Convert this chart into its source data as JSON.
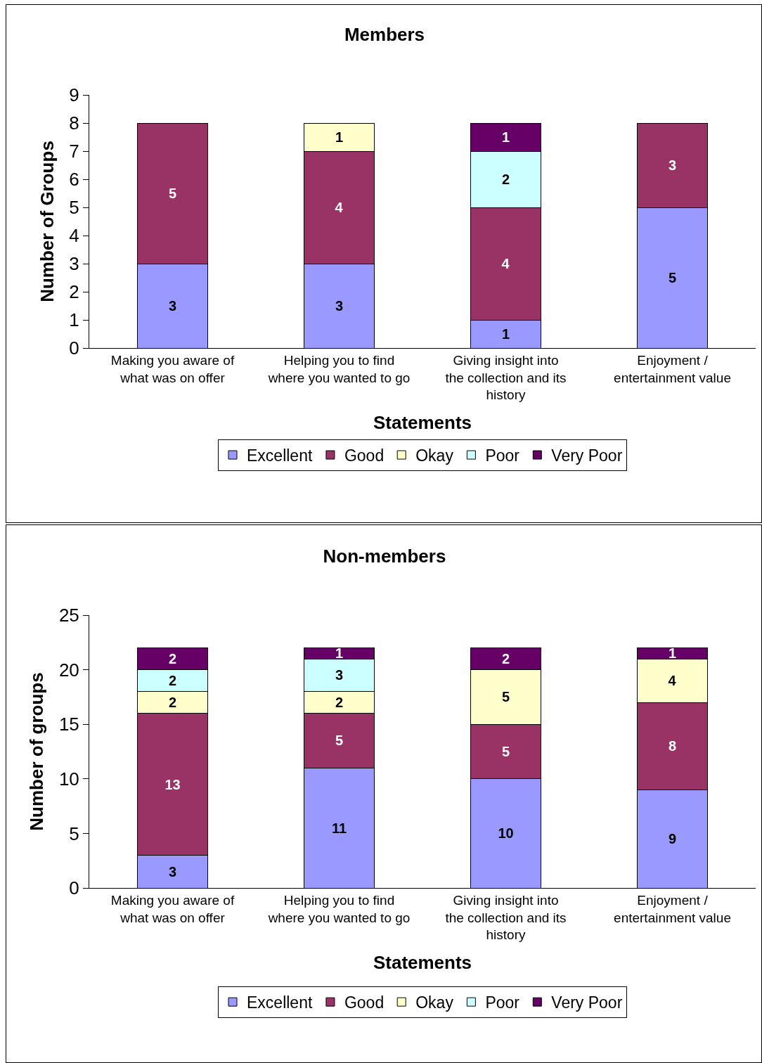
{
  "chart_data": [
    {
      "type": "bar",
      "title": "Members",
      "xlabel": "Statements",
      "ylabel": "Number of Groups",
      "stacked": true,
      "data_labels": true,
      "legend": "bottom",
      "grid": false,
      "ylim": [
        0,
        9
      ],
      "yticks": [
        0,
        1,
        2,
        3,
        4,
        5,
        6,
        7,
        8,
        9
      ],
      "categories": [
        "Making you aware of what was on offer",
        "Helping you to find where you wanted to go",
        "Giving insight into the collection and its history",
        "Enjoyment / entertainment value"
      ],
      "series": [
        {
          "name": "Excellent",
          "color": "#9999ff",
          "values": [
            3,
            3,
            1,
            5
          ]
        },
        {
          "name": "Good",
          "color": "#993366",
          "values": [
            5,
            4,
            4,
            3
          ]
        },
        {
          "name": "Okay",
          "color": "#ffffcc",
          "values": [
            null,
            1,
            null,
            null
          ]
        },
        {
          "name": "Poor",
          "color": "#ccffff",
          "values": [
            null,
            null,
            2,
            null
          ]
        },
        {
          "name": "Very Poor",
          "color": "#660066",
          "values": [
            null,
            null,
            1,
            null
          ]
        }
      ]
    },
    {
      "type": "bar",
      "title": "Non-members",
      "xlabel": "Statements",
      "ylabel": "Number of groups",
      "stacked": true,
      "data_labels": true,
      "legend": "bottom",
      "grid": false,
      "ylim": [
        0,
        25
      ],
      "yticks": [
        0,
        5,
        10,
        15,
        20,
        25
      ],
      "categories": [
        "Making you aware of what was on offer",
        "Helping you to find where you wanted to go",
        "Giving insight into the collection and its history",
        "Enjoyment / entertainment value"
      ],
      "series": [
        {
          "name": "Excellent",
          "color": "#9999ff",
          "values": [
            3,
            11,
            10,
            9
          ]
        },
        {
          "name": "Good",
          "color": "#993366",
          "values": [
            13,
            5,
            5,
            8
          ]
        },
        {
          "name": "Okay",
          "color": "#ffffcc",
          "values": [
            2,
            2,
            5,
            4
          ]
        },
        {
          "name": "Poor",
          "color": "#ccffff",
          "values": [
            2,
            3,
            null,
            null
          ]
        },
        {
          "name": "Very Poor",
          "color": "#660066",
          "values": [
            2,
            1,
            2,
            1
          ]
        }
      ]
    }
  ]
}
